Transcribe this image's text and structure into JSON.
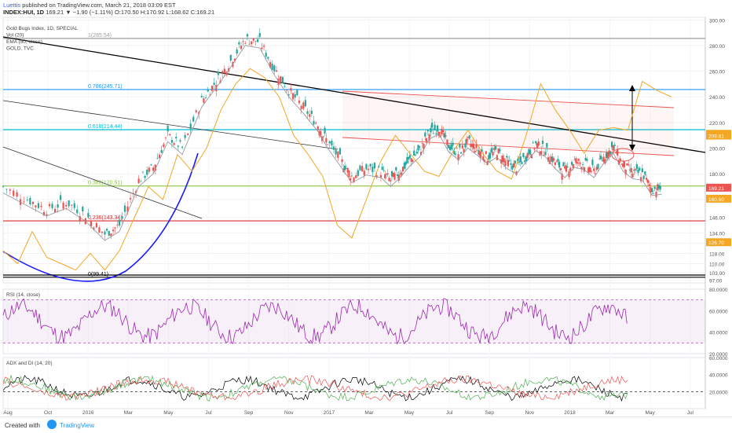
{
  "header": {
    "author": "Luettis",
    "published": "published on TradingView.com, March 21, 2018 03:09 EST",
    "symbol_line": "INDEX:HUI, 1D",
    "ohlc": "169.21 ▼ −1.90 (−1.11%) O:170.50 H:170.92 L:168.62 C:169.21"
  },
  "legend": [
    "Gold Bugs Index, 1D, SPECIAL",
    "Vol (20)",
    "EMA (50, close)",
    "GOLD, TVC"
  ],
  "footer": {
    "created_with": "Created with",
    "brand": "TradingView"
  },
  "colors": {
    "up": "#26a69a",
    "down": "#ef5350",
    "gold": "#f5a623",
    "ema": "#9598a1",
    "trend": "#000000",
    "fib_786": "#2196f3",
    "fib_618": "#00bcd4",
    "fib_382": "#8bc34a",
    "fib_236": "#d32f2f",
    "rsi": "#9c27b0",
    "adx": "#000000",
    "plus_di": "#4caf50",
    "minus_di": "#ef5350"
  },
  "chart_data": [
    {
      "type": "candlestick",
      "title": "Gold Bugs Index, 1D, SPECIAL",
      "y_axis_ticks": [
        97,
        103,
        110,
        118,
        126,
        134,
        146,
        160,
        180,
        200,
        220,
        240,
        260,
        280,
        300
      ],
      "ylim": [
        95,
        302
      ],
      "x_axis_ticks": [
        "Aug",
        "Oct",
        "2016",
        "Mar",
        "May",
        "Jul",
        "Sep",
        "Nov",
        "2017",
        "Mar",
        "May",
        "Jul",
        "Sep",
        "Nov",
        "2018",
        "Mar",
        "May",
        "Jul"
      ],
      "price_labels": [
        {
          "value": 211.19,
          "label": "211.19",
          "color": "#f5a623"
        },
        {
          "value": 209.81,
          "label": "209.81",
          "color": "#f5a623"
        },
        {
          "value": 169.21,
          "label": "169.21",
          "color": "#ef5350"
        },
        {
          "value": 160.6,
          "label": "160.60",
          "color": "#f5a623"
        },
        {
          "value": 126.7,
          "label": "126.70",
          "color": "#f5a623"
        }
      ],
      "fib_levels": [
        {
          "label": "1(285.54)",
          "value": 285.54,
          "color": "#9e9e9e"
        },
        {
          "label": "0.786(245.71)",
          "value": 245.71,
          "color": "#2196f3"
        },
        {
          "label": "0.618(214.44)",
          "value": 214.44,
          "color": "#00bcd4"
        },
        {
          "label": "0.382(170.51)",
          "value": 170.51,
          "color": "#8bc34a"
        },
        {
          "label": "0.236(143.34)",
          "value": 143.34,
          "color": "#d32f2f"
        },
        {
          "label": "0(99.41)",
          "value": 99.41,
          "color": "#000000"
        }
      ],
      "series": [
        {
          "name": "Gold Bugs Index",
          "points": [
            [
              0,
              170
            ],
            [
              0.05,
              160
            ],
            [
              0.09,
              152
            ],
            [
              0.13,
              158
            ],
            [
              0.17,
              148
            ],
            [
              0.21,
              133
            ],
            [
              0.24,
              140
            ],
            [
              0.28,
              175
            ],
            [
              0.31,
              185
            ],
            [
              0.34,
              210
            ],
            [
              0.37,
              200
            ],
            [
              0.41,
              237
            ],
            [
              0.44,
              252
            ],
            [
              0.47,
              268
            ],
            [
              0.5,
              285
            ],
            [
              0.53,
              283
            ],
            [
              0.56,
              262
            ],
            [
              0.59,
              245
            ],
            [
              0.62,
              232
            ],
            [
              0.65,
              218
            ],
            [
              0.67,
              205
            ],
            [
              0.7,
              189
            ],
            [
              0.72,
              178
            ],
            [
              0.75,
              184
            ],
            [
              0.78,
              182
            ],
            [
              0.8,
              175
            ],
            [
              0.82,
              182
            ],
            [
              0.84,
              191
            ],
            [
              0.86,
              198
            ],
            [
              0.88,
              212
            ],
            [
              0.9,
              216
            ],
            [
              0.92,
              202
            ],
            [
              0.94,
              196
            ],
            [
              0.96,
              205
            ],
            [
              0.98,
              199
            ],
            [
              1.0,
              193
            ],
            [
              1.02,
              198
            ],
            [
              1.04,
              189
            ],
            [
              1.06,
              185
            ],
            [
              1.08,
              194
            ],
            [
              1.1,
              203
            ],
            [
              1.12,
              198
            ],
            [
              1.14,
              189
            ],
            [
              1.16,
              182
            ],
            [
              1.18,
              190
            ],
            [
              1.2,
              188
            ],
            [
              1.22,
              182
            ],
            [
              1.24,
              193
            ],
            [
              1.26,
              201
            ],
            [
              1.28,
              187
            ],
            [
              1.3,
              181
            ],
            [
              1.32,
              180
            ],
            [
              1.34,
              168
            ],
            [
              1.36,
              169
            ]
          ]
        },
        {
          "name": "GOLD, TVC",
          "points": [
            [
              0,
              120
            ],
            [
              0.03,
              110
            ],
            [
              0.06,
              135
            ],
            [
              0.09,
              115
            ],
            [
              0.12,
              110
            ],
            [
              0.15,
              105
            ],
            [
              0.18,
              118
            ],
            [
              0.21,
              105
            ],
            [
              0.24,
              120
            ],
            [
              0.27,
              145
            ],
            [
              0.3,
              170
            ],
            [
              0.33,
              160
            ],
            [
              0.36,
              195
            ],
            [
              0.39,
              182
            ],
            [
              0.42,
              200
            ],
            [
              0.45,
              230
            ],
            [
              0.48,
              250
            ],
            [
              0.51,
              262
            ],
            [
              0.54,
              255
            ],
            [
              0.57,
              240
            ],
            [
              0.6,
              210
            ],
            [
              0.63,
              195
            ],
            [
              0.66,
              178
            ],
            [
              0.69,
              140
            ],
            [
              0.72,
              130
            ],
            [
              0.75,
              160
            ],
            [
              0.78,
              190
            ],
            [
              0.81,
              210
            ],
            [
              0.84,
              196
            ],
            [
              0.87,
              182
            ],
            [
              0.9,
              178
            ],
            [
              0.93,
              198
            ],
            [
              0.96,
              214
            ],
            [
              0.99,
              196
            ],
            [
              1.02,
              182
            ],
            [
              1.05,
              176
            ],
            [
              1.08,
              210
            ],
            [
              1.11,
              250
            ],
            [
              1.14,
              230
            ],
            [
              1.17,
              214
            ],
            [
              1.2,
              196
            ],
            [
              1.23,
              214
            ],
            [
              1.26,
              216
            ],
            [
              1.29,
              214
            ],
            [
              1.32,
              252
            ],
            [
              1.35,
              245
            ],
            [
              1.38,
              240
            ]
          ]
        }
      ]
    },
    {
      "type": "line",
      "title": "RSI (14, close)",
      "ylim": [
        20,
        80
      ],
      "y_axis_ticks": [
        20,
        40,
        60,
        80
      ],
      "band": [
        30,
        70
      ]
    },
    {
      "type": "line",
      "title": "ADX and DI (14, 20)",
      "ylim": [
        0,
        60
      ],
      "y_axis_ticks": [
        20,
        40,
        60
      ],
      "threshold": 20,
      "series": [
        {
          "name": "ADX"
        },
        {
          "name": "+DI"
        },
        {
          "name": "-DI"
        }
      ]
    }
  ]
}
